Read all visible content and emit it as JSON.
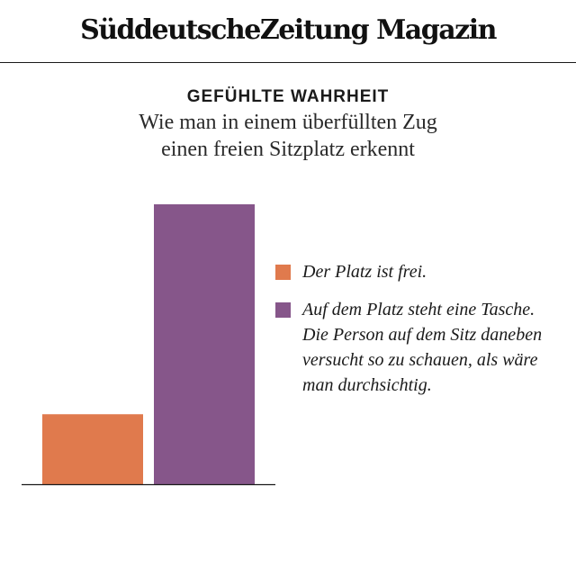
{
  "masthead": {
    "logo_text": "SüddeutscheZeitung Magazin"
  },
  "header": {
    "kicker": "GEFÜHLTE WAHRHEIT",
    "subtitle_line1": "Wie man in einem überfüllten Zug",
    "subtitle_line2": "einen freien Sitzplatz erkennt"
  },
  "colors": {
    "orange": "#e07a4d",
    "purple": "#86568a",
    "axis": "#1a1a1a"
  },
  "chart_data": {
    "type": "bar",
    "title": "GEFÜHLTE WAHRHEIT",
    "subtitle": "Wie man in einem überfüllten Zug einen freien Sitzplatz erkennt",
    "xlabel": "",
    "ylabel": "",
    "grid": false,
    "legend_position": "right",
    "ylim": [
      0,
      100
    ],
    "categories": [
      "Der Platz ist frei.",
      "Auf dem Platz steht eine Tasche. Die Person auf dem Sitz daneben versucht so zu schauen, als wäre man durchsichtig."
    ],
    "values": [
      25,
      100
    ],
    "colors": [
      "#e07a4d",
      "#86568a"
    ]
  },
  "legend": {
    "items": [
      {
        "label": "Der Platz ist frei.",
        "color": "#e07a4d"
      },
      {
        "label": "Auf dem Platz steht eine Tasche. Die Person auf dem Sitz daneben versucht so zu schauen, als wäre man durchsichtig.",
        "color": "#86568a"
      }
    ]
  }
}
